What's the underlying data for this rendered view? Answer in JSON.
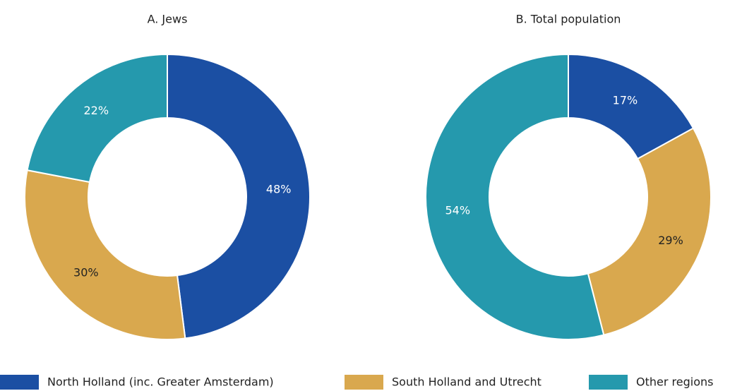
{
  "chart_data": [
    {
      "type": "donut",
      "title": "A. Jews",
      "values": [
        48,
        30,
        22
      ],
      "value_labels": [
        "48%",
        "30%",
        "22%"
      ]
    },
    {
      "type": "donut",
      "title": "B. Total population",
      "values": [
        17,
        29,
        54
      ],
      "value_labels": [
        "17%",
        "29%",
        "54%"
      ]
    }
  ],
  "legend": {
    "names": [
      "North Holland (inc. Greater Amsterdam)",
      "South Holland and Utrecht",
      "Other regions"
    ],
    "colors": [
      "#1b4fa3",
      "#d9a84e",
      "#2599ad"
    ],
    "label_colors": [
      "#ffffff",
      "#222222",
      "#ffffff"
    ]
  }
}
